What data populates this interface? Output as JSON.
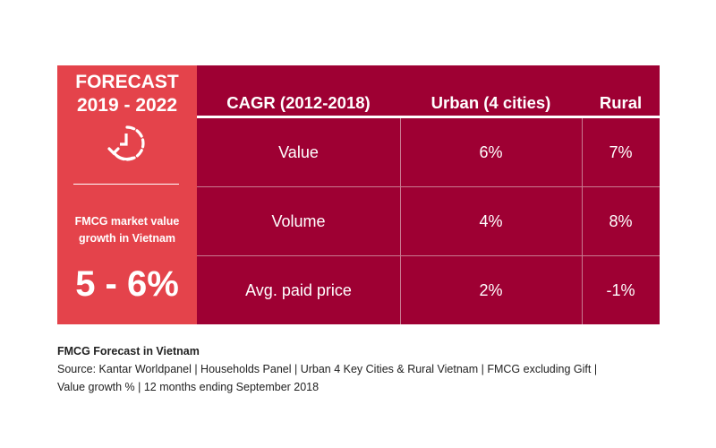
{
  "forecast": {
    "title_line1": "FORECAST",
    "title_line2": "2019 - 2022",
    "icon": "clock-history-icon",
    "subtitle_line1": "FMCG market value",
    "subtitle_line2": "growth in Vietnam",
    "value": "5 - 6%"
  },
  "table": {
    "headers": [
      "CAGR (2012-2018)",
      "Urban (4 cities)",
      "Rural"
    ],
    "rows": [
      [
        "Value",
        "6%",
        "7%"
      ],
      [
        "Volume",
        "4%",
        "8%"
      ],
      [
        "Avg. paid price",
        "2%",
        "-1%"
      ]
    ]
  },
  "caption": {
    "title": "FMCG Forecast in Vietnam",
    "source_line1": "Source: Kantar Worldpanel | Households Panel | Urban 4 Key Cities & Rural Vietnam | FMCG excluding Gift |",
    "source_line2": "Value growth % | 12 months ending September 2018"
  },
  "colors": {
    "forecast_panel": "#e4434b",
    "table_bg": "#9e0033"
  }
}
